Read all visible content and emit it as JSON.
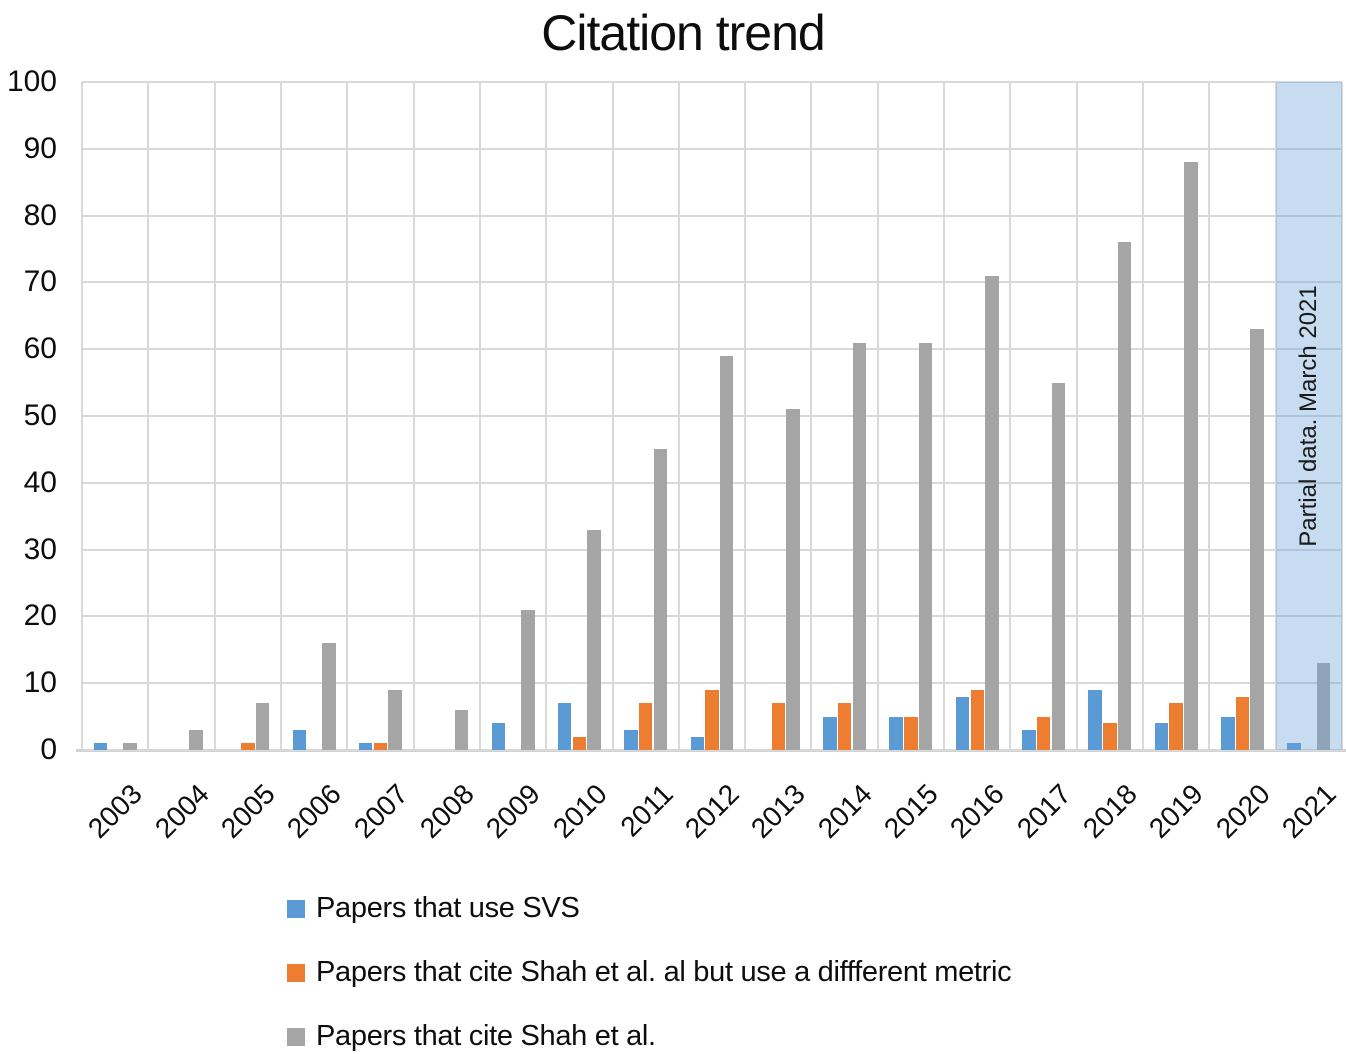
{
  "title": "Citation trend",
  "chart_data": {
    "type": "bar",
    "title": "Citation trend",
    "xlabel": "",
    "ylabel": "",
    "categories": [
      "2003",
      "2004",
      "2005",
      "2006",
      "2007",
      "2008",
      "2009",
      "2010",
      "2011",
      "2012",
      "2013",
      "2014",
      "2015",
      "2016",
      "2017",
      "2018",
      "2019",
      "2020",
      "2021"
    ],
    "series": [
      {
        "key": "use-svs",
        "name": "Papers that use SVS",
        "color": "#5B9BD5",
        "values": [
          1,
          0,
          0,
          3,
          1,
          0,
          4,
          7,
          3,
          2,
          0,
          5,
          5,
          8,
          3,
          9,
          4,
          5,
          1
        ]
      },
      {
        "key": "different-metric",
        "name": "Papers that cite Shah et al. al but use a diffferent metric",
        "color": "#ED7D31",
        "values": [
          0,
          0,
          1,
          0,
          1,
          0,
          0,
          2,
          7,
          9,
          7,
          7,
          5,
          9,
          5,
          4,
          7,
          8,
          0
        ]
      },
      {
        "key": "cite-shah",
        "name": "Papers that cite Shah et al.",
        "color": "#A5A5A5",
        "values": [
          1,
          3,
          7,
          16,
          9,
          6,
          21,
          33,
          45,
          59,
          51,
          61,
          61,
          71,
          55,
          76,
          88,
          63,
          13
        ]
      }
    ],
    "ylim": [
      0,
      100
    ],
    "yticks": [
      0,
      10,
      20,
      30,
      40,
      50,
      60,
      70,
      80,
      90,
      100
    ],
    "grid": true,
    "legend_position": "bottom-left",
    "annotation": {
      "text": "Partial data. March 2021",
      "category": "2021",
      "overlay_color": "rgba(107,162,215,0.38)"
    }
  }
}
